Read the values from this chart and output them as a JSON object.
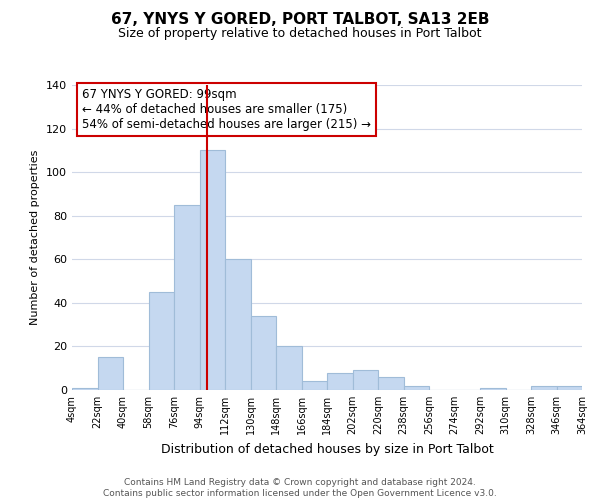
{
  "title": "67, YNYS Y GORED, PORT TALBOT, SA13 2EB",
  "subtitle": "Size of property relative to detached houses in Port Talbot",
  "xlabel": "Distribution of detached houses by size in Port Talbot",
  "ylabel": "Number of detached properties",
  "bar_color": "#c5d8f0",
  "bar_edge_color": "#a0bcd8",
  "bin_edges": [
    4,
    22,
    40,
    58,
    76,
    94,
    112,
    130,
    148,
    166,
    184,
    202,
    220,
    238,
    256,
    274,
    292,
    310,
    328,
    346,
    364
  ],
  "counts": [
    1,
    15,
    0,
    45,
    85,
    110,
    60,
    34,
    20,
    4,
    8,
    9,
    6,
    2,
    0,
    0,
    1,
    0,
    2,
    2
  ],
  "vline_x": 99,
  "vline_color": "#cc0000",
  "annotation_lines": [
    "67 YNYS Y GORED: 99sqm",
    "← 44% of detached houses are smaller (175)",
    "54% of semi-detached houses are larger (215) →"
  ],
  "ylim": [
    0,
    140
  ],
  "yticks": [
    0,
    20,
    40,
    60,
    80,
    100,
    120,
    140
  ],
  "tick_labels": [
    "4sqm",
    "22sqm",
    "40sqm",
    "58sqm",
    "76sqm",
    "94sqm",
    "112sqm",
    "130sqm",
    "148sqm",
    "166sqm",
    "184sqm",
    "202sqm",
    "220sqm",
    "238sqm",
    "256sqm",
    "274sqm",
    "292sqm",
    "310sqm",
    "328sqm",
    "346sqm",
    "364sqm"
  ],
  "footer_text": "Contains HM Land Registry data © Crown copyright and database right 2024.\nContains public sector information licensed under the Open Government Licence v3.0.",
  "background_color": "#ffffff",
  "grid_color": "#d0d8e8",
  "title_fontsize": 11,
  "subtitle_fontsize": 9,
  "ylabel_fontsize": 8,
  "xlabel_fontsize": 9,
  "annotation_fontsize": 8.5,
  "footer_fontsize": 6.5
}
